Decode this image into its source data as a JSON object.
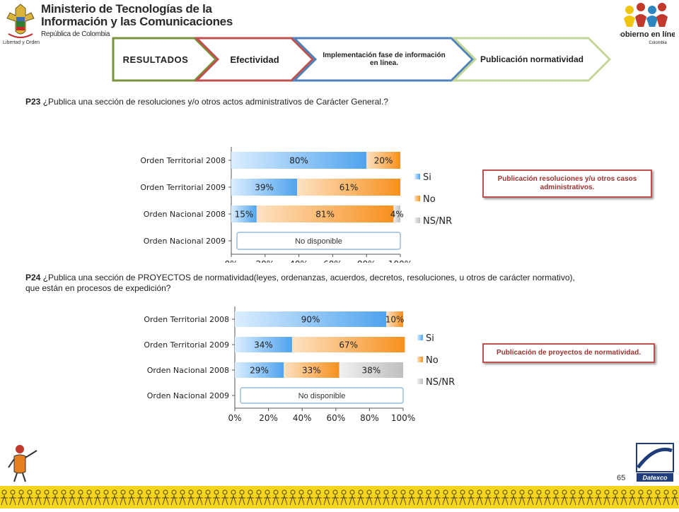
{
  "header": {
    "ministry_line1": "Ministerio de Tecnologías de la",
    "ministry_line2": "Información y las Comunicaciones",
    "ministry_line3": "República de Colombia",
    "crest_caption": "Libertad y Orden",
    "gel_logo_text": "Gobierno en línea",
    "gel_logo_country": "Colombia"
  },
  "nav": {
    "tab1": "RESULTADOS",
    "tab2": "Efectividad",
    "tab3": "Implementación fase de información en línea.",
    "tab4": "Publicación normatividad"
  },
  "colors": {
    "si": "#4fa3ee",
    "no": "#f7901e",
    "nsnr": "#bfbfbf",
    "note_border": "#c0504d",
    "tab1": "#77933c",
    "tab2": "#c0504d",
    "tab3": "#4f81bd",
    "tab4": "#c3d69b"
  },
  "q1": {
    "num": "P23",
    "text": "¿Publica una sección de resoluciones y/o otros actos administrativos de Carácter General.?",
    "note": "Publicación resoluciones y/u otros casos administrativos."
  },
  "q2": {
    "num": "P24",
    "text": "¿Publica una sección de PROYECTOS de normatividad(leyes, ordenanzas, acuerdos, decretos, resoluciones, u otros de carácter normativo), que están en procesos de expedición?",
    "note": "Publicación de proyectos de normatividad."
  },
  "page_number": "65",
  "datexco": "Datexco",
  "chart_data": [
    {
      "type": "bar",
      "orientation": "horizontal",
      "stacked": "percent",
      "categories": [
        "Orden Territorial 2008",
        "Orden Territorial 2009",
        "Orden Nacional 2008",
        "Orden Nacional 2009"
      ],
      "series": [
        {
          "name": "Si",
          "values": [
            80,
            39,
            15,
            null
          ],
          "labels": [
            "80%",
            "39%",
            "15%",
            ""
          ]
        },
        {
          "name": "No",
          "values": [
            20,
            61,
            81,
            null
          ],
          "labels": [
            "20%",
            "61%",
            "81%",
            ""
          ]
        },
        {
          "name": "NS/NR",
          "values": [
            0,
            0,
            4,
            null
          ],
          "labels": [
            "",
            "",
            "4%",
            ""
          ]
        }
      ],
      "unavailable_label": "No disponible",
      "x_ticks": [
        "0%",
        "20%",
        "40%",
        "60%",
        "80%",
        "100%"
      ],
      "xlim": [
        0,
        100
      ],
      "legend": "right"
    },
    {
      "type": "bar",
      "orientation": "horizontal",
      "stacked": "percent",
      "categories": [
        "Orden Territorial 2008",
        "Orden Territorial 2009",
        "Orden Nacional 2008",
        "Orden Nacional 2009"
      ],
      "series": [
        {
          "name": "Si",
          "values": [
            90,
            34,
            29,
            null
          ],
          "labels": [
            "90%",
            "34%",
            "29%",
            ""
          ]
        },
        {
          "name": "No",
          "values": [
            10,
            67,
            33,
            null
          ],
          "labels": [
            "10%",
            "67%",
            "33%",
            ""
          ]
        },
        {
          "name": "NS/NR",
          "values": [
            0,
            0,
            38,
            null
          ],
          "labels": [
            "",
            "",
            "38%",
            ""
          ]
        }
      ],
      "unavailable_label": "No disponible",
      "x_ticks": [
        "0%",
        "20%",
        "40%",
        "60%",
        "80%",
        "100%"
      ],
      "xlim": [
        0,
        100
      ],
      "legend": "right"
    }
  ]
}
